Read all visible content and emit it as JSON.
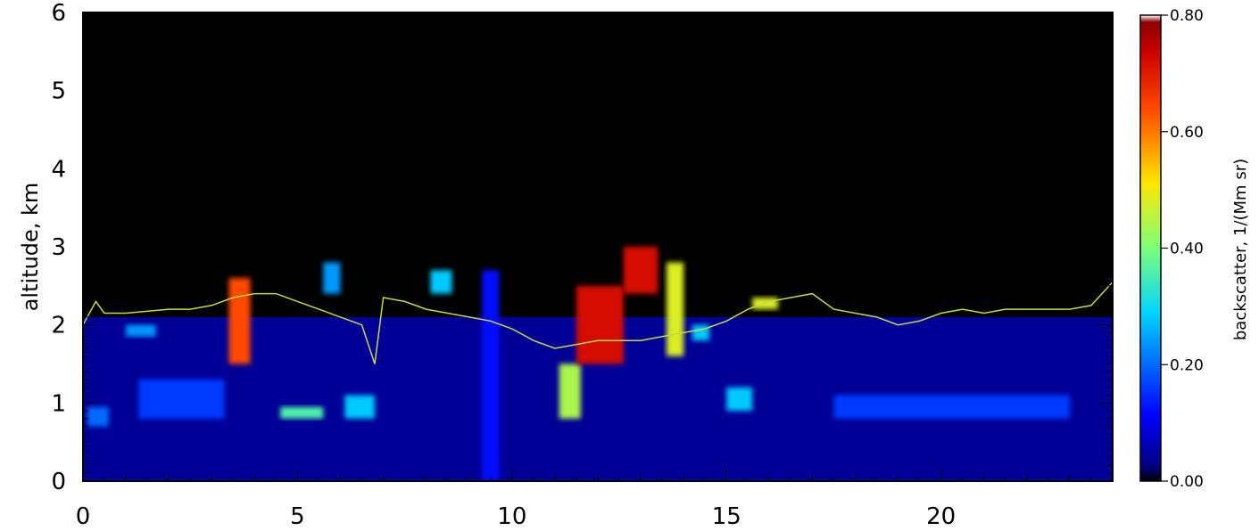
{
  "chart_data": {
    "type": "heatmap",
    "title": "",
    "xlabel": "",
    "ylabel": "altitude, km",
    "xlim": [
      0,
      24
    ],
    "ylim": [
      0,
      6
    ],
    "x_ticks": [
      "0",
      "5",
      "10",
      "15",
      "20"
    ],
    "y_ticks": [
      "0",
      "1",
      "2",
      "3",
      "4",
      "5",
      "6"
    ],
    "colorbar": {
      "label": "backscatter, 1/(Mm sr)",
      "range": [
        0,
        0.8
      ],
      "ticks": [
        "0.00",
        "0.20",
        "0.40",
        "0.60",
        "0.80"
      ],
      "placement": "right"
    },
    "background_color": "#000000",
    "boundary_layer_height_km": {
      "x": [
        0,
        0.3,
        0.5,
        1.0,
        2.0,
        2.5,
        3.0,
        3.5,
        4.0,
        4.5,
        5.0,
        5.5,
        6.0,
        6.5,
        6.8,
        7.0,
        7.5,
        8.0,
        8.5,
        9.0,
        9.5,
        10.0,
        10.5,
        11.0,
        11.5,
        12.0,
        12.5,
        13.0,
        13.5,
        14.0,
        14.5,
        15.0,
        15.5,
        16.0,
        16.5,
        17.0,
        17.5,
        18.0,
        18.5,
        19.0,
        19.5,
        20.0,
        20.5,
        21.0,
        21.5,
        22.0,
        22.5,
        23.0,
        23.5,
        24.0
      ],
      "y": [
        2.0,
        2.3,
        2.15,
        2.15,
        2.2,
        2.2,
        2.25,
        2.35,
        2.4,
        2.4,
        2.3,
        2.2,
        2.1,
        2.0,
        1.5,
        2.35,
        2.3,
        2.2,
        2.15,
        2.1,
        2.05,
        1.95,
        1.8,
        1.7,
        1.75,
        1.8,
        1.8,
        1.8,
        1.85,
        1.9,
        1.95,
        2.05,
        2.2,
        2.3,
        2.35,
        2.4,
        2.2,
        2.15,
        2.1,
        2.0,
        2.05,
        2.15,
        2.2,
        2.15,
        2.2,
        2.2,
        2.2,
        2.2,
        2.25,
        2.55
      ]
    },
    "aerosol_layers": [
      {
        "x": [
          0,
          24
        ],
        "y": [
          0,
          2.1
        ],
        "level": 0.05
      },
      {
        "x": [
          0.1,
          0.6
        ],
        "y": [
          0.7,
          0.95
        ],
        "level": 0.25
      },
      {
        "x": [
          1.0,
          1.7
        ],
        "y": [
          1.85,
          2.0
        ],
        "level": 0.3
      },
      {
        "x": [
          1.3,
          3.3
        ],
        "y": [
          0.8,
          1.3
        ],
        "level": 0.2
      },
      {
        "x": [
          3.4,
          3.9
        ],
        "y": [
          1.5,
          2.6
        ],
        "level": 0.8
      },
      {
        "x": [
          4.6,
          5.6
        ],
        "y": [
          0.8,
          0.95
        ],
        "level": 0.45
      },
      {
        "x": [
          5.6,
          6.0
        ],
        "y": [
          2.4,
          2.8
        ],
        "level": 0.3
      },
      {
        "x": [
          6.1,
          6.8
        ],
        "y": [
          0.8,
          1.1
        ],
        "level": 0.35
      },
      {
        "x": [
          8.1,
          8.6
        ],
        "y": [
          2.4,
          2.7
        ],
        "level": 0.35
      },
      {
        "x": [
          9.3,
          9.7
        ],
        "y": [
          0.0,
          2.7
        ],
        "level": 0.15
      },
      {
        "x": [
          11.1,
          11.6
        ],
        "y": [
          0.8,
          1.5
        ],
        "level": 0.55
      },
      {
        "x": [
          11.5,
          12.6
        ],
        "y": [
          1.5,
          2.5
        ],
        "level": 0.9
      },
      {
        "x": [
          12.6,
          13.4
        ],
        "y": [
          2.4,
          3.0
        ],
        "level": 0.9
      },
      {
        "x": [
          13.6,
          14.0
        ],
        "y": [
          1.6,
          2.8
        ],
        "level": 0.6
      },
      {
        "x": [
          14.2,
          14.6
        ],
        "y": [
          1.8,
          2.0
        ],
        "level": 0.35
      },
      {
        "x": [
          15.0,
          15.6
        ],
        "y": [
          0.9,
          1.2
        ],
        "level": 0.35
      },
      {
        "x": [
          15.6,
          16.2
        ],
        "y": [
          2.2,
          2.35
        ],
        "level": 0.6
      },
      {
        "x": [
          17.5,
          23.0
        ],
        "y": [
          0.8,
          1.1
        ],
        "level": 0.2
      }
    ]
  }
}
